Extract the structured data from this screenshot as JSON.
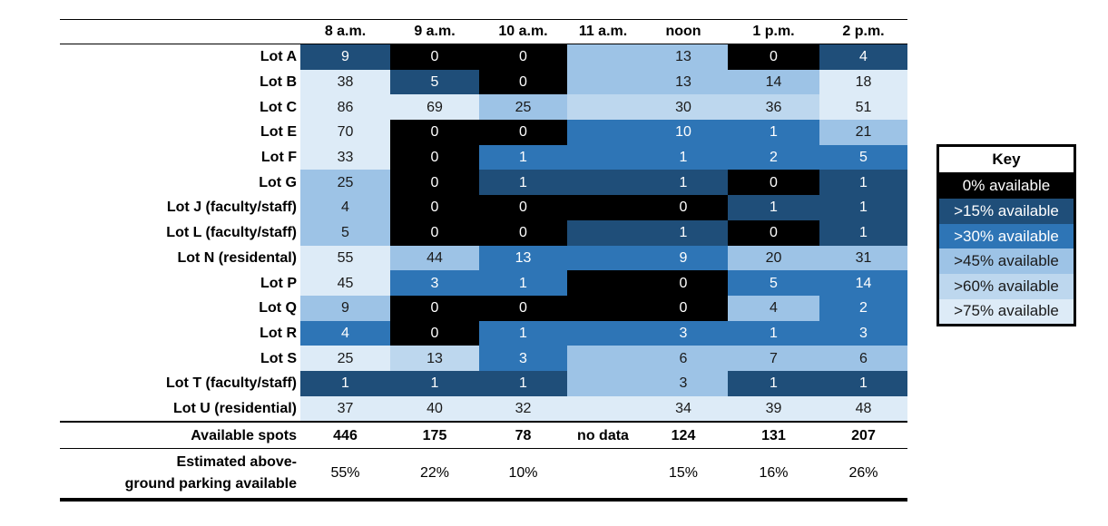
{
  "chart_data": {
    "type": "table",
    "columns": [
      "8 a.m.",
      "9 a.m.",
      "10 a.m.",
      "11 a.m.",
      "noon",
      "1 p.m.",
      "2 p.m."
    ],
    "rows": [
      {
        "lot": "Lot A",
        "values": [
          "9",
          "0",
          "0",
          "",
          "13",
          "0",
          "4"
        ],
        "levels": [
          "c15",
          "c0",
          "c0",
          "c45",
          "c45",
          "c0",
          "c15"
        ]
      },
      {
        "lot": "Lot B",
        "values": [
          "38",
          "5",
          "0",
          "",
          "13",
          "14",
          "18"
        ],
        "levels": [
          "c75",
          "c15",
          "c0",
          "c45",
          "c45",
          "c45",
          "c75"
        ]
      },
      {
        "lot": "Lot C",
        "values": [
          "86",
          "69",
          "25",
          "",
          "30",
          "36",
          "51"
        ],
        "levels": [
          "c75",
          "c75",
          "c45",
          "c60",
          "c60",
          "c60",
          "c75"
        ]
      },
      {
        "lot": "Lot E",
        "values": [
          "70",
          "0",
          "0",
          "",
          "10",
          "1",
          "21"
        ],
        "levels": [
          "c75",
          "c0",
          "c0",
          "c30",
          "c30",
          "c30",
          "c45"
        ]
      },
      {
        "lot": "Lot F",
        "values": [
          "33",
          "0",
          "1",
          "",
          "1",
          "2",
          "5"
        ],
        "levels": [
          "c75",
          "c0",
          "c30",
          "c30",
          "c30",
          "c30",
          "c30"
        ]
      },
      {
        "lot": "Lot G",
        "values": [
          "25",
          "0",
          "1",
          "",
          "1",
          "0",
          "1"
        ],
        "levels": [
          "c45",
          "c0",
          "c15",
          "c15",
          "c15",
          "c0",
          "c15"
        ]
      },
      {
        "lot": "Lot J (faculty/staff)",
        "values": [
          "4",
          "0",
          "0",
          "",
          "0",
          "1",
          "1"
        ],
        "levels": [
          "c45",
          "c0",
          "c0",
          "c0",
          "c0",
          "c15",
          "c15"
        ]
      },
      {
        "lot": "Lot L (faculty/staff)",
        "values": [
          "5",
          "0",
          "0",
          "",
          "1",
          "0",
          "1"
        ],
        "levels": [
          "c45",
          "c0",
          "c0",
          "c15",
          "c15",
          "c0",
          "c15"
        ]
      },
      {
        "lot": "Lot N (residental)",
        "values": [
          "55",
          "44",
          "13",
          "",
          "9",
          "20",
          "31"
        ],
        "levels": [
          "c75",
          "c45",
          "c30",
          "c30",
          "c30",
          "c45",
          "c45"
        ]
      },
      {
        "lot": "Lot P",
        "values": [
          "45",
          "3",
          "1",
          "",
          "0",
          "5",
          "14"
        ],
        "levels": [
          "c75",
          "c30",
          "c30",
          "c0",
          "c0",
          "c30",
          "c30"
        ]
      },
      {
        "lot": "Lot Q",
        "values": [
          "9",
          "0",
          "0",
          "",
          "0",
          "4",
          "2"
        ],
        "levels": [
          "c45",
          "c0",
          "c0",
          "c0",
          "c0",
          "c45",
          "c30"
        ]
      },
      {
        "lot": "Lot R",
        "values": [
          "4",
          "0",
          "1",
          "",
          "3",
          "1",
          "3"
        ],
        "levels": [
          "c30",
          "c0",
          "c30",
          "c30",
          "c30",
          "c30",
          "c30"
        ]
      },
      {
        "lot": "Lot S",
        "values": [
          "25",
          "13",
          "3",
          "",
          "6",
          "7",
          "6"
        ],
        "levels": [
          "c75",
          "c60",
          "c30",
          "c45",
          "c45",
          "c45",
          "c45"
        ]
      },
      {
        "lot": "Lot T (faculty/staff)",
        "values": [
          "1",
          "1",
          "1",
          "",
          "3",
          "1",
          "1"
        ],
        "levels": [
          "c15",
          "c15",
          "c15",
          "c45",
          "c45",
          "c15",
          "c15"
        ]
      },
      {
        "lot": "Lot U (residential)",
        "values": [
          "37",
          "40",
          "32",
          "",
          "34",
          "39",
          "48"
        ],
        "levels": [
          "c75",
          "c75",
          "c75",
          "c75",
          "c75",
          "c75",
          "c75"
        ]
      }
    ],
    "totals": {
      "label": "Available spots",
      "values": [
        "446",
        "175",
        "78",
        "no data",
        "124",
        "131",
        "207"
      ]
    },
    "percent": {
      "label_line1": "Estimated above-",
      "label_line2": "ground parking available",
      "values": [
        "55%",
        "22%",
        "10%",
        "",
        "15%",
        "16%",
        "26%"
      ]
    }
  },
  "colors": {
    "c0": "#000000",
    "c15": "#1f4e79",
    "c30": "#2e75b6",
    "c45": "#9dc3e6",
    "c60": "#bdd7ee",
    "c75": "#ddebf7"
  },
  "key": {
    "title": "Key",
    "items": [
      {
        "label": "0% available",
        "level": "c0"
      },
      {
        "label": ">15% available",
        "level": "c15"
      },
      {
        "label": ">30% available",
        "level": "c30"
      },
      {
        "label": ">45% available",
        "level": "c45"
      },
      {
        "label": ">60% available",
        "level": "c60"
      },
      {
        "label": ">75% available",
        "level": "c75"
      }
    ]
  }
}
